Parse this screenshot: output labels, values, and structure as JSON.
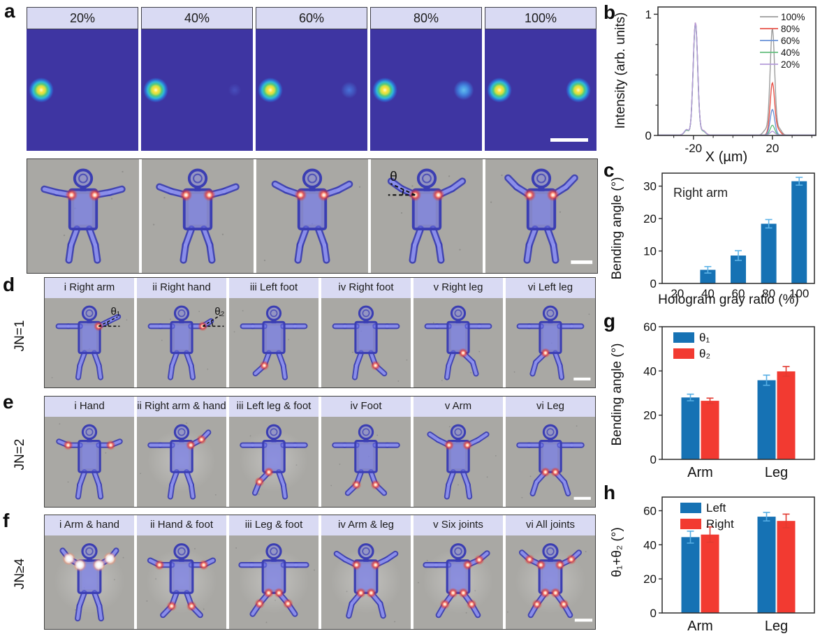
{
  "panel_letters": {
    "a": "a",
    "b": "b",
    "c": "c",
    "d": "d",
    "e": "e",
    "f": "f",
    "g": "g",
    "h": "h"
  },
  "panel_a": {
    "hologram_cells": [
      {
        "label": "20%",
        "right_spot": 0
      },
      {
        "label": "40%",
        "right_spot": 0.18
      },
      {
        "label": "60%",
        "right_spot": 0.32
      },
      {
        "label": "80%",
        "right_spot": 0.6
      },
      {
        "label": "100%",
        "right_spot": 1,
        "scalebar": true
      }
    ],
    "robot_cells": [
      {
        "arms": [
          10,
          5,
          10,
          5
        ],
        "spots": [
          "L-shoulder",
          "R-shoulder"
        ]
      },
      {
        "arms": [
          14,
          7,
          14,
          7
        ],
        "spots": [
          "L-shoulder",
          "R-shoulder"
        ]
      },
      {
        "arms": [
          19,
          9,
          19,
          9
        ],
        "spots": [
          "L-shoulder",
          "R-shoulder"
        ]
      },
      {
        "arms": [
          25,
          11,
          25,
          11
        ],
        "spots": [
          "L-shoulder",
          "R-shoulder"
        ],
        "theta": {
          "text": "θ",
          "side": "L"
        }
      },
      {
        "arms": [
          32,
          14,
          32,
          14
        ],
        "spots": [
          "L-shoulder",
          "R-shoulder"
        ],
        "scalebar": true
      }
    ]
  },
  "robot_rows": [
    {
      "letter": "d",
      "jn_label": "JN=1",
      "cells": [
        {
          "label": "i Right arm",
          "arms": [
            0,
            0,
            26,
            0
          ],
          "spots": [
            "R-shoulder"
          ],
          "theta": {
            "text": "θ₁",
            "side": "R"
          }
        },
        {
          "label": "ii Right hand",
          "arms": [
            0,
            0,
            0,
            32
          ],
          "spots": [
            "R-elbow"
          ],
          "theta": {
            "text": "θ₂",
            "side": "R-fore"
          }
        },
        {
          "label": "iii Left  foot",
          "legs": [
            20,
            48,
            20,
            8
          ],
          "spots": [
            "L-knee"
          ]
        },
        {
          "label": "iv Right foot",
          "legs": [
            20,
            8,
            20,
            48
          ],
          "spots": [
            "R-knee"
          ]
        },
        {
          "label": "v Right leg",
          "legs": [
            20,
            8,
            46,
            16
          ],
          "spots": [
            "R-hip"
          ]
        },
        {
          "label": "vi Left leg",
          "legs": [
            46,
            16,
            20,
            8
          ],
          "spots": [
            "L-hip"
          ],
          "scalebar": true
        }
      ]
    },
    {
      "letter": "e",
      "jn_label": "JN=2",
      "cells": [
        {
          "label": "i Hand",
          "arms": [
            0,
            22,
            0,
            22
          ],
          "spots": [
            "L-elbow",
            "R-elbow"
          ]
        },
        {
          "label": "ii Right arm & hand",
          "arms": [
            0,
            0,
            28,
            18
          ],
          "spots": [
            "R-shoulder",
            "R-elbow"
          ],
          "halo": true
        },
        {
          "label": "iii Left leg & foot",
          "legs": [
            44,
            22,
            20,
            8
          ],
          "spots": [
            "L-hip",
            "L-knee"
          ],
          "halo": true
        },
        {
          "label": "iv Foot",
          "legs": [
            20,
            46,
            20,
            46
          ],
          "spots": [
            "L-knee",
            "R-knee"
          ]
        },
        {
          "label": "v Arm",
          "arms": [
            26,
            8,
            26,
            8
          ],
          "spots": [
            "L-shoulder",
            "R-shoulder"
          ]
        },
        {
          "label": "vi Leg",
          "legs": [
            42,
            18,
            42,
            18
          ],
          "spots": [
            "L-hip",
            "R-hip"
          ],
          "scalebar": true
        }
      ]
    },
    {
      "letter": "f",
      "jn_label": "JN≥4",
      "cells": [
        {
          "label": "i Arm & hand",
          "arms": [
            30,
            22,
            30,
            22
          ],
          "spots": [
            "L-shoulder",
            "L-elbow",
            "R-shoulder",
            "R-elbow"
          ],
          "bright": true,
          "halo": true
        },
        {
          "label": "ii Hand & foot",
          "arms": [
            0,
            26,
            0,
            26
          ],
          "legs": [
            20,
            44,
            20,
            44
          ],
          "spots": [
            "L-elbow",
            "R-elbow",
            "L-knee",
            "R-knee"
          ],
          "halo": true
        },
        {
          "label": "iii Leg & foot",
          "legs": [
            40,
            34,
            40,
            34
          ],
          "spots": [
            "L-hip",
            "L-knee",
            "R-hip",
            "R-knee"
          ],
          "halo": true
        },
        {
          "label": "iv Arm & leg",
          "arms": [
            26,
            8,
            26,
            8
          ],
          "legs": [
            40,
            14,
            40,
            14
          ],
          "spots": [
            "L-shoulder",
            "R-shoulder",
            "L-hip",
            "R-hip"
          ],
          "halo": true
        },
        {
          "label": "v Six joints",
          "arms": [
            0,
            0,
            24,
            16
          ],
          "legs": [
            36,
            30,
            36,
            30
          ],
          "spots": [
            "R-shoulder",
            "R-elbow",
            "L-hip",
            "L-knee",
            "R-hip",
            "R-knee"
          ],
          "halo": true
        },
        {
          "label": "vi All joints",
          "arms": [
            26,
            16,
            26,
            16
          ],
          "legs": [
            36,
            30,
            36,
            30
          ],
          "spots": [
            "L-shoulder",
            "L-elbow",
            "R-shoulder",
            "R-elbow",
            "L-hip",
            "L-knee",
            "R-hip",
            "R-knee"
          ],
          "halo": true,
          "scalebar": true
        }
      ]
    }
  ],
  "chart_data": [
    {
      "id": "b",
      "type": "line",
      "xlabel": "X (µm)",
      "ylabel": "Intensity (arb. units)",
      "xlim": [
        -38,
        42
      ],
      "ylim": [
        0,
        1.06
      ],
      "xticks": [
        -20,
        20
      ],
      "yticks": [
        0,
        1
      ],
      "legend_position": "top-right",
      "grid": false,
      "series": [
        {
          "name": "100%",
          "color": "#9c9c9c",
          "peaks": [
            [
              -19,
              0.92
            ],
            [
              20,
              0.88
            ],
            [
              -23.5,
              0.04
            ],
            [
              -15,
              0.035
            ],
            [
              23.5,
              0.05
            ],
            [
              16.5,
              0.04
            ]
          ]
        },
        {
          "name": "80%",
          "color": "#e85248",
          "peaks": [
            [
              -19,
              0.93
            ],
            [
              20,
              0.43
            ],
            [
              -23.5,
              0.04
            ],
            [
              -15,
              0.035
            ],
            [
              23,
              0.04
            ]
          ]
        },
        {
          "name": "60%",
          "color": "#6a93d8",
          "peaks": [
            [
              -19,
              0.92
            ],
            [
              20,
              0.21
            ],
            [
              -23.5,
              0.04
            ],
            [
              -15,
              0.03
            ]
          ]
        },
        {
          "name": "40%",
          "color": "#62bd7c",
          "peaks": [
            [
              -19,
              0.92
            ],
            [
              20,
              0.08
            ],
            [
              -23.5,
              0.04
            ],
            [
              -15,
              0.03
            ]
          ]
        },
        {
          "name": "20%",
          "color": "#b49bda",
          "peaks": [
            [
              -19,
              0.93
            ],
            [
              20,
              0.03
            ],
            [
              -23.5,
              0.045
            ],
            [
              -15,
              0.035
            ]
          ]
        }
      ]
    },
    {
      "id": "c",
      "type": "bar",
      "annotation": "Right arm",
      "xlabel": "Hologram gray ratio (%)",
      "ylabel": "Bending angle (°)",
      "categories": [
        "20",
        "40",
        "60",
        "80",
        "100"
      ],
      "values": [
        0,
        4.2,
        8.6,
        18.4,
        31.5
      ],
      "errors": [
        0,
        1.0,
        1.5,
        1.3,
        1.2
      ],
      "bar_color": "#1672b4",
      "error_color": "#5fb4e8",
      "ylim": [
        0,
        34
      ],
      "yticks": [
        0,
        10,
        20,
        30
      ],
      "grid": false
    },
    {
      "id": "g",
      "type": "bar",
      "ylabel": "Bending angle (°)",
      "xlabel": "",
      "categories": [
        "Arm",
        "Leg"
      ],
      "legend_position": "top-left",
      "series": [
        {
          "name": "θ₁",
          "color": "#1672b4",
          "error_color": "#56aee4",
          "values": [
            28,
            35.8
          ],
          "errors": [
            1.5,
            2.3
          ]
        },
        {
          "name": "θ₂",
          "color": "#f23a31",
          "error_color": "#e23a31",
          "values": [
            26.5,
            39.8
          ],
          "errors": [
            1.2,
            2.2
          ]
        }
      ],
      "ylim": [
        0,
        60
      ],
      "yticks": [
        0,
        20,
        40,
        60
      ],
      "grid": false
    },
    {
      "id": "h",
      "type": "bar",
      "ylabel": "θ₁+θ₂ (°)",
      "xlabel": "",
      "categories": [
        "Arm",
        "Leg"
      ],
      "legend_position": "top-left",
      "series": [
        {
          "name": "Left",
          "color": "#1672b4",
          "error_color": "#56aee4",
          "values": [
            44.5,
            56.5
          ],
          "errors": [
            3.5,
            2.5
          ]
        },
        {
          "name": "Right",
          "color": "#f23a31",
          "error_color": "#e23a31",
          "values": [
            46,
            54
          ],
          "errors": [
            4.5,
            4.0
          ]
        }
      ],
      "ylim": [
        0,
        68
      ],
      "yticks": [
        0,
        20,
        40,
        60
      ],
      "grid": false
    }
  ],
  "colors": {
    "header_bg": "#d9daf3",
    "hologram_bg": "#3e35a2",
    "micrograph_bg": "#a9a8a4",
    "robot_blue": "#3b3eb2",
    "bar_blue": "#1672b4",
    "bar_red": "#f23a31"
  }
}
